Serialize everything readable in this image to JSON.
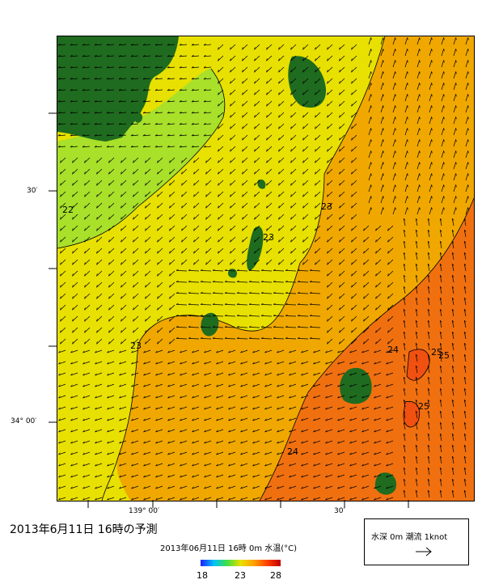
{
  "map": {
    "lat_labels": [
      "30′",
      "34° 00′"
    ],
    "lon_labels": [
      "139° 00′",
      "30′"
    ],
    "contour_labels": [
      "22",
      "23",
      "23",
      "23",
      "24",
      "24",
      "25",
      "25",
      "25"
    ]
  },
  "forecast_title": "2013年6月11日 16時の予測",
  "colorbar": {
    "title": "2013年06月11日 16時 0m 水温(°C)",
    "min": "18",
    "mid": "23",
    "max": "28",
    "colors": [
      "#2020ff",
      "#00c0ff",
      "#40e040",
      "#e8e000",
      "#ffa000",
      "#ff4000",
      "#c00000"
    ]
  },
  "legend": {
    "label": "水深 0m 潮流 1knot",
    "arrow_icon": "right-arrow-icon"
  },
  "palette": {
    "land": "#1f6b1f",
    "temp_22": "#a8e02a",
    "temp_23": "#e8e000",
    "temp_24": "#f0a800",
    "temp_25": "#f07010"
  }
}
